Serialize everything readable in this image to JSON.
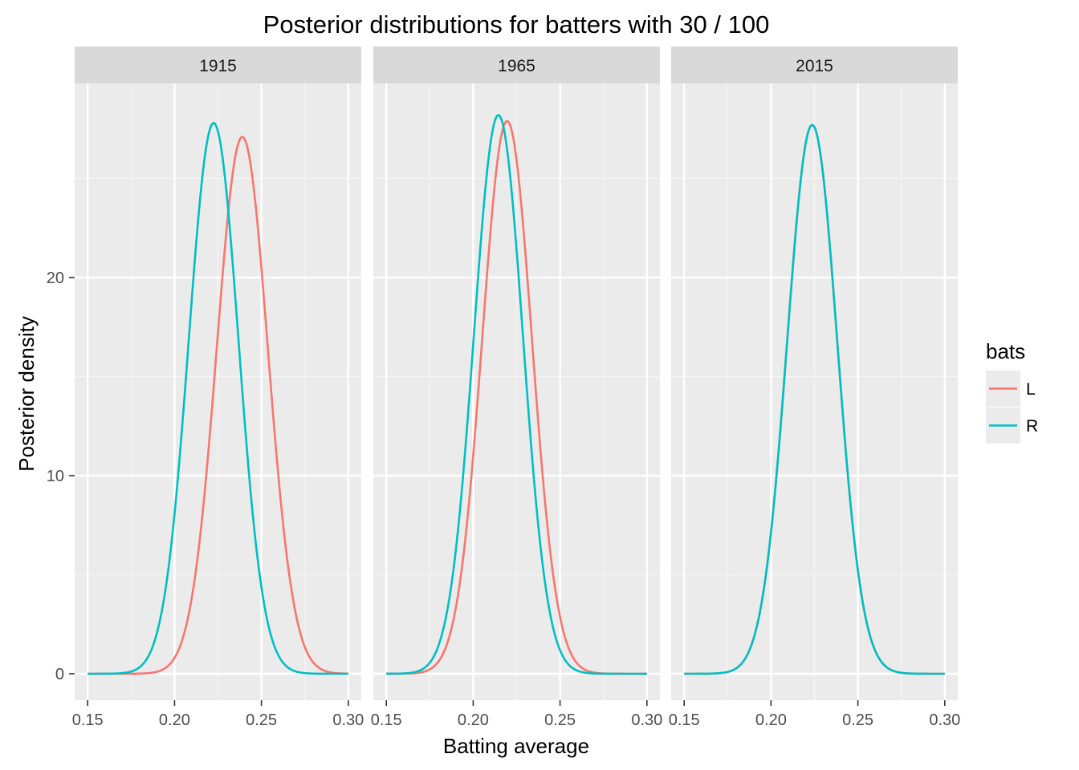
{
  "chart_data": {
    "type": "line",
    "title": "Posterior distributions for batters with 30 / 100",
    "xlabel": "Batting average",
    "ylabel": "Posterior density",
    "xlim": [
      0.15,
      0.3
    ],
    "ylim": [
      0,
      28
    ],
    "x_ticks": [
      "0.15",
      "0.20",
      "0.25",
      "0.30"
    ],
    "y_ticks": [
      "0",
      "10",
      "20"
    ],
    "grid": true,
    "legend": {
      "title": "bats",
      "position": "right",
      "entries": [
        {
          "label": "L",
          "color": "#F8766D"
        },
        {
          "label": "R",
          "color": "#00BFC4"
        }
      ]
    },
    "facets": [
      {
        "label": "1915",
        "series": [
          {
            "name": "L",
            "color": "#F8766D",
            "peak_x": 0.239,
            "peak_y": 27.1,
            "sd": 0.0147
          },
          {
            "name": "R",
            "color": "#00BFC4",
            "peak_x": 0.2225,
            "peak_y": 27.8,
            "sd": 0.0143
          }
        ]
      },
      {
        "label": "1965",
        "series": [
          {
            "name": "L",
            "color": "#F8766D",
            "peak_x": 0.2195,
            "peak_y": 27.9,
            "sd": 0.0143
          },
          {
            "name": "R",
            "color": "#00BFC4",
            "peak_x": 0.2145,
            "peak_y": 28.2,
            "sd": 0.0141
          }
        ]
      },
      {
        "label": "2015",
        "series": [
          {
            "name": "L",
            "color": "#F8766D",
            "peak_x": 0.2237,
            "peak_y": 27.7,
            "sd": 0.0144
          },
          {
            "name": "R",
            "color": "#00BFC4",
            "peak_x": 0.2237,
            "peak_y": 27.7,
            "sd": 0.0144
          }
        ]
      }
    ]
  }
}
